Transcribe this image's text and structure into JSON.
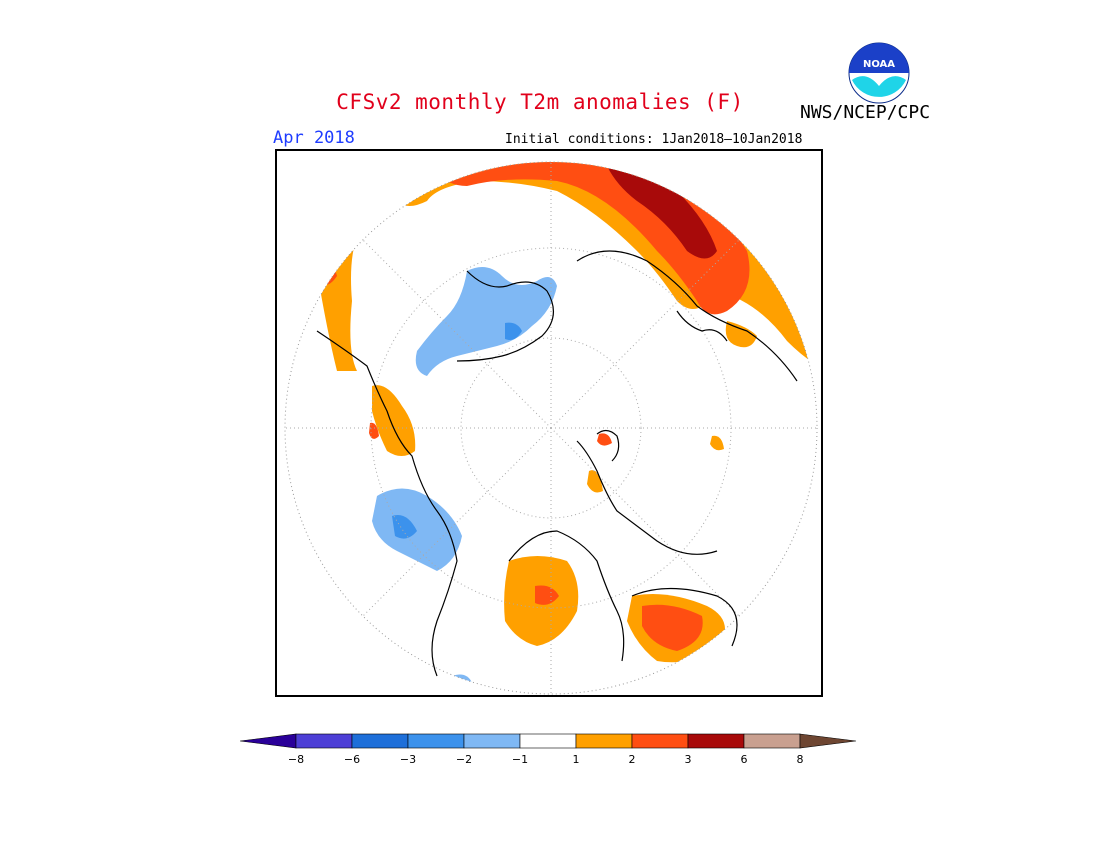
{
  "header": {
    "title": "CFSv2 monthly T2m anomalies (F)",
    "agency": "NWS/NCEP/CPC",
    "logo_text": "NOAA",
    "valid_month": "Apr 2018",
    "initial_conditions": "Initial conditions: 1Jan2018–10Jan2018"
  },
  "legend": {
    "colors": [
      "#2a0099",
      "#4d3fd6",
      "#1e6fd9",
      "#3c92ec",
      "#7fb8f4",
      "#ffffff",
      "#ffa000",
      "#ff4e12",
      "#a80a0a",
      "#c9a090",
      "#6e4632"
    ],
    "labels": [
      "−8",
      "−6",
      "−3",
      "−2",
      "−1",
      "1",
      "2",
      "3",
      "6",
      "8"
    ]
  },
  "colors": {
    "title": "#e1001b",
    "month": "#1e3cff",
    "warm_1": "#ffa000",
    "warm_2": "#ff4e12",
    "warm_3": "#a80a0a",
    "cool_1": "#7fb8f4",
    "cool_2": "#3c92ec"
  }
}
